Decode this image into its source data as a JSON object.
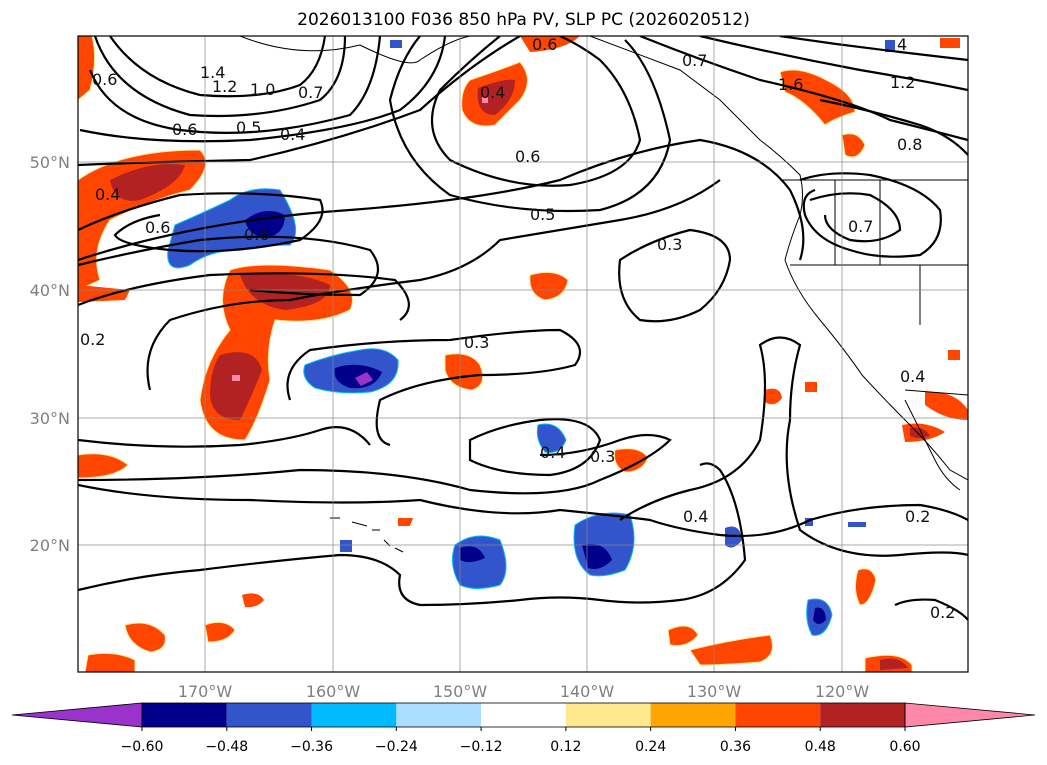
{
  "title": "2026013100 F036 850 hPa PV, SLP PC (2026020512)",
  "axes": {
    "lon_labels": [
      "170°W",
      "160°W",
      "150°W",
      "140°W",
      "130°W",
      "120°W"
    ],
    "lat_labels": [
      "50°N",
      "40°N",
      "30°N",
      "20°N"
    ]
  },
  "colorbar": {
    "colors": [
      "#9933cc",
      "#00008b",
      "#3355cc",
      "#00bbff",
      "#aaddff",
      "#ffffff",
      "#ffe98f",
      "#ffa500",
      "#ff4500",
      "#b22222",
      "#ff88aa"
    ],
    "ticks": [
      "−0.60",
      "−0.48",
      "−0.36",
      "−0.24",
      "−0.12",
      "0.12",
      "0.24",
      "0.36",
      "0.48",
      "0.60"
    ]
  },
  "contour_labels": [
    "0.6",
    "1.4",
    "1.2",
    "1.0",
    "0.7",
    "0.6",
    "0.5",
    "0.4",
    "0.6",
    "0.7",
    "0.6",
    "0.5",
    "0.3",
    "0.3",
    "0.4",
    "0.3",
    "0.4",
    "0.2",
    "0.2",
    "0.7",
    "0.8",
    "1.2",
    "1.6",
    "4",
    "0.4",
    "0.4",
    "0.4",
    "0.6",
    "0.2",
    "0.6"
  ]
}
